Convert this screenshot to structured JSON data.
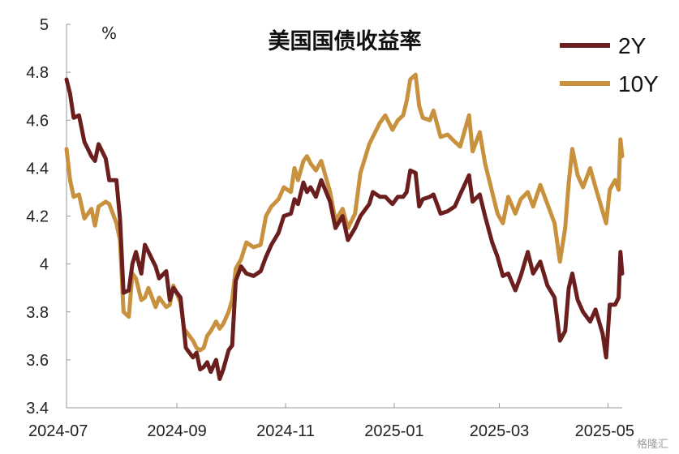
{
  "chart_data": {
    "type": "line",
    "title": "美国国债收益率",
    "unit_label": "%",
    "xlabel": "",
    "ylabel": "",
    "ylim": [
      3.4,
      5.0
    ],
    "yticks": [
      3.4,
      3.6,
      3.8,
      4.0,
      4.2,
      4.4,
      4.6,
      4.8,
      5.0
    ],
    "ytick_labels": [
      "3.4",
      "3.6",
      "3.8",
      "4",
      "4.2",
      "4.4",
      "4.6",
      "4.8",
      "5"
    ],
    "xlim": [
      "2024-07-01",
      "2025-05-09"
    ],
    "xticks": [
      "2024-07-01",
      "2024-09-01",
      "2024-11-01",
      "2025-01-01",
      "2025-03-01",
      "2025-05-01"
    ],
    "xtick_labels": [
      "2024-07",
      "2024-09",
      "2024-11",
      "2025-01",
      "2025-03",
      "2025-05"
    ],
    "grid": false,
    "legend": "top-right",
    "series": [
      {
        "name": "2Y",
        "color": "#6b1e1e",
        "points": [
          [
            "2024-07-01",
            4.77
          ],
          [
            "2024-07-03",
            4.71
          ],
          [
            "2024-07-05",
            4.61
          ],
          [
            "2024-07-08",
            4.62
          ],
          [
            "2024-07-11",
            4.51
          ],
          [
            "2024-07-15",
            4.45
          ],
          [
            "2024-07-17",
            4.43
          ],
          [
            "2024-07-19",
            4.5
          ],
          [
            "2024-07-23",
            4.44
          ],
          [
            "2024-07-25",
            4.35
          ],
          [
            "2024-07-29",
            4.35
          ],
          [
            "2024-07-31",
            4.19
          ],
          [
            "2024-08-02",
            3.88
          ],
          [
            "2024-08-05",
            3.89
          ],
          [
            "2024-08-07",
            4.0
          ],
          [
            "2024-08-09",
            4.05
          ],
          [
            "2024-08-12",
            3.96
          ],
          [
            "2024-08-14",
            4.08
          ],
          [
            "2024-08-16",
            4.05
          ],
          [
            "2024-08-20",
            3.99
          ],
          [
            "2024-08-22",
            3.94
          ],
          [
            "2024-08-26",
            3.97
          ],
          [
            "2024-08-28",
            3.85
          ],
          [
            "2024-08-30",
            3.9
          ],
          [
            "2024-09-03",
            3.86
          ],
          [
            "2024-09-05",
            3.72
          ],
          [
            "2024-09-06",
            3.65
          ],
          [
            "2024-09-10",
            3.61
          ],
          [
            "2024-09-12",
            3.63
          ],
          [
            "2024-09-14",
            3.56
          ],
          [
            "2024-09-16",
            3.57
          ],
          [
            "2024-09-18",
            3.59
          ],
          [
            "2024-09-20",
            3.55
          ],
          [
            "2024-09-23",
            3.6
          ],
          [
            "2024-09-25",
            3.52
          ],
          [
            "2024-09-27",
            3.56
          ],
          [
            "2024-09-30",
            3.64
          ],
          [
            "2024-10-02",
            3.66
          ],
          [
            "2024-10-04",
            3.93
          ],
          [
            "2024-10-07",
            3.99
          ],
          [
            "2024-10-10",
            3.96
          ],
          [
            "2024-10-14",
            3.95
          ],
          [
            "2024-10-18",
            3.97
          ],
          [
            "2024-10-21",
            4.03
          ],
          [
            "2024-10-24",
            4.08
          ],
          [
            "2024-10-28",
            4.13
          ],
          [
            "2024-10-31",
            4.2
          ],
          [
            "2024-11-04",
            4.21
          ],
          [
            "2024-11-06",
            4.27
          ],
          [
            "2024-11-08",
            4.25
          ],
          [
            "2024-11-11",
            4.34
          ],
          [
            "2024-11-13",
            4.3
          ],
          [
            "2024-11-15",
            4.32
          ],
          [
            "2024-11-18",
            4.28
          ],
          [
            "2024-11-21",
            4.35
          ],
          [
            "2024-11-26",
            4.26
          ],
          [
            "2024-11-29",
            4.15
          ],
          [
            "2024-12-03",
            4.2
          ],
          [
            "2024-12-06",
            4.1
          ],
          [
            "2024-12-10",
            4.15
          ],
          [
            "2024-12-13",
            4.2
          ],
          [
            "2024-12-18",
            4.25
          ],
          [
            "2024-12-20",
            4.3
          ],
          [
            "2024-12-24",
            4.28
          ],
          [
            "2024-12-27",
            4.28
          ],
          [
            "2024-12-31",
            4.25
          ],
          [
            "2025-01-03",
            4.28
          ],
          [
            "2025-01-06",
            4.28
          ],
          [
            "2025-01-08",
            4.3
          ],
          [
            "2025-01-10",
            4.39
          ],
          [
            "2025-01-13",
            4.38
          ],
          [
            "2025-01-15",
            4.24
          ],
          [
            "2025-01-17",
            4.27
          ],
          [
            "2025-01-21",
            4.28
          ],
          [
            "2025-01-23",
            4.29
          ],
          [
            "2025-01-27",
            4.21
          ],
          [
            "2025-01-31",
            4.22
          ],
          [
            "2025-02-04",
            4.24
          ],
          [
            "2025-02-07",
            4.29
          ],
          [
            "2025-02-12",
            4.37
          ],
          [
            "2025-02-14",
            4.26
          ],
          [
            "2025-02-18",
            4.29
          ],
          [
            "2025-02-21",
            4.2
          ],
          [
            "2025-02-25",
            4.09
          ],
          [
            "2025-02-28",
            4.03
          ],
          [
            "2025-03-03",
            3.95
          ],
          [
            "2025-03-06",
            3.96
          ],
          [
            "2025-03-10",
            3.89
          ],
          [
            "2025-03-13",
            3.95
          ],
          [
            "2025-03-17",
            4.05
          ],
          [
            "2025-03-20",
            3.96
          ],
          [
            "2025-03-24",
            4.01
          ],
          [
            "2025-03-28",
            3.91
          ],
          [
            "2025-04-01",
            3.86
          ],
          [
            "2025-04-04",
            3.68
          ],
          [
            "2025-04-07",
            3.72
          ],
          [
            "2025-04-09",
            3.9
          ],
          [
            "2025-04-11",
            3.96
          ],
          [
            "2025-04-14",
            3.85
          ],
          [
            "2025-04-17",
            3.8
          ],
          [
            "2025-04-21",
            3.76
          ],
          [
            "2025-04-24",
            3.81
          ],
          [
            "2025-04-28",
            3.71
          ],
          [
            "2025-04-30",
            3.61
          ],
          [
            "2025-05-02",
            3.83
          ],
          [
            "2025-05-05",
            3.83
          ],
          [
            "2025-05-07",
            3.86
          ],
          [
            "2025-05-08",
            4.05
          ],
          [
            "2025-05-09",
            3.96
          ]
        ]
      },
      {
        "name": "10Y",
        "color": "#c8913d",
        "points": [
          [
            "2024-07-01",
            4.48
          ],
          [
            "2024-07-03",
            4.35
          ],
          [
            "2024-07-05",
            4.28
          ],
          [
            "2024-07-08",
            4.29
          ],
          [
            "2024-07-11",
            4.19
          ],
          [
            "2024-07-15",
            4.23
          ],
          [
            "2024-07-17",
            4.16
          ],
          [
            "2024-07-19",
            4.24
          ],
          [
            "2024-07-23",
            4.26
          ],
          [
            "2024-07-25",
            4.25
          ],
          [
            "2024-07-29",
            4.17
          ],
          [
            "2024-07-31",
            4.1
          ],
          [
            "2024-08-02",
            3.8
          ],
          [
            "2024-08-05",
            3.78
          ],
          [
            "2024-08-07",
            3.96
          ],
          [
            "2024-08-09",
            3.94
          ],
          [
            "2024-08-12",
            3.85
          ],
          [
            "2024-08-14",
            3.86
          ],
          [
            "2024-08-16",
            3.9
          ],
          [
            "2024-08-20",
            3.82
          ],
          [
            "2024-08-22",
            3.86
          ],
          [
            "2024-08-26",
            3.82
          ],
          [
            "2024-08-28",
            3.83
          ],
          [
            "2024-08-30",
            3.91
          ],
          [
            "2024-09-03",
            3.84
          ],
          [
            "2024-09-05",
            3.73
          ],
          [
            "2024-09-06",
            3.72
          ],
          [
            "2024-09-10",
            3.68
          ],
          [
            "2024-09-12",
            3.65
          ],
          [
            "2024-09-14",
            3.64
          ],
          [
            "2024-09-16",
            3.65
          ],
          [
            "2024-09-18",
            3.7
          ],
          [
            "2024-09-20",
            3.72
          ],
          [
            "2024-09-23",
            3.76
          ],
          [
            "2024-09-25",
            3.73
          ],
          [
            "2024-09-27",
            3.75
          ],
          [
            "2024-09-30",
            3.8
          ],
          [
            "2024-10-02",
            3.85
          ],
          [
            "2024-10-04",
            3.98
          ],
          [
            "2024-10-07",
            4.02
          ],
          [
            "2024-10-10",
            4.09
          ],
          [
            "2024-10-14",
            4.07
          ],
          [
            "2024-10-18",
            4.08
          ],
          [
            "2024-10-21",
            4.2
          ],
          [
            "2024-10-24",
            4.24
          ],
          [
            "2024-10-28",
            4.27
          ],
          [
            "2024-10-31",
            4.32
          ],
          [
            "2024-11-04",
            4.3
          ],
          [
            "2024-11-06",
            4.4
          ],
          [
            "2024-11-08",
            4.35
          ],
          [
            "2024-11-11",
            4.43
          ],
          [
            "2024-11-13",
            4.45
          ],
          [
            "2024-11-15",
            4.42
          ],
          [
            "2024-11-18",
            4.39
          ],
          [
            "2024-11-21",
            4.43
          ],
          [
            "2024-11-26",
            4.3
          ],
          [
            "2024-11-29",
            4.18
          ],
          [
            "2024-12-03",
            4.23
          ],
          [
            "2024-12-06",
            4.15
          ],
          [
            "2024-12-10",
            4.21
          ],
          [
            "2024-12-13",
            4.38
          ],
          [
            "2024-12-18",
            4.5
          ],
          [
            "2024-12-20",
            4.53
          ],
          [
            "2024-12-24",
            4.59
          ],
          [
            "2024-12-27",
            4.62
          ],
          [
            "2024-12-31",
            4.56
          ],
          [
            "2025-01-03",
            4.6
          ],
          [
            "2025-01-06",
            4.62
          ],
          [
            "2025-01-08",
            4.68
          ],
          [
            "2025-01-10",
            4.77
          ],
          [
            "2025-01-13",
            4.79
          ],
          [
            "2025-01-15",
            4.66
          ],
          [
            "2025-01-17",
            4.61
          ],
          [
            "2025-01-21",
            4.6
          ],
          [
            "2025-01-23",
            4.64
          ],
          [
            "2025-01-27",
            4.53
          ],
          [
            "2025-01-31",
            4.54
          ],
          [
            "2025-02-04",
            4.51
          ],
          [
            "2025-02-07",
            4.49
          ],
          [
            "2025-02-12",
            4.62
          ],
          [
            "2025-02-14",
            4.47
          ],
          [
            "2025-02-18",
            4.55
          ],
          [
            "2025-02-21",
            4.42
          ],
          [
            "2025-02-25",
            4.3
          ],
          [
            "2025-02-28",
            4.21
          ],
          [
            "2025-03-03",
            4.17
          ],
          [
            "2025-03-06",
            4.28
          ],
          [
            "2025-03-10",
            4.21
          ],
          [
            "2025-03-13",
            4.27
          ],
          [
            "2025-03-17",
            4.3
          ],
          [
            "2025-03-20",
            4.24
          ],
          [
            "2025-03-24",
            4.33
          ],
          [
            "2025-03-28",
            4.25
          ],
          [
            "2025-04-01",
            4.17
          ],
          [
            "2025-04-04",
            4.01
          ],
          [
            "2025-04-07",
            4.15
          ],
          [
            "2025-04-09",
            4.34
          ],
          [
            "2025-04-11",
            4.48
          ],
          [
            "2025-04-14",
            4.37
          ],
          [
            "2025-04-17",
            4.32
          ],
          [
            "2025-04-21",
            4.4
          ],
          [
            "2025-04-24",
            4.32
          ],
          [
            "2025-04-28",
            4.22
          ],
          [
            "2025-04-30",
            4.17
          ],
          [
            "2025-05-02",
            4.31
          ],
          [
            "2025-05-05",
            4.35
          ],
          [
            "2025-05-07",
            4.31
          ],
          [
            "2025-05-08",
            4.52
          ],
          [
            "2025-05-09",
            4.45
          ]
        ]
      }
    ]
  },
  "watermark": "格隆汇"
}
